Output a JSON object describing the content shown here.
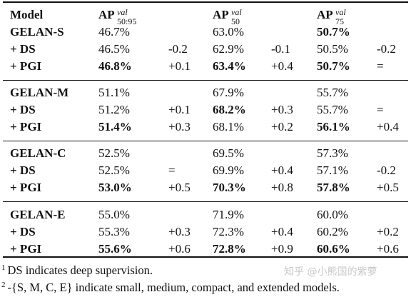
{
  "header": {
    "model": "Model",
    "ap1": {
      "main": "AP",
      "sup": "val",
      "sub": "50:95"
    },
    "ap2": {
      "main": "AP",
      "sup": "val",
      "sub": "50"
    },
    "ap3": {
      "main": "AP",
      "sup": "val",
      "sub": "75"
    }
  },
  "groups": [
    {
      "rows": [
        {
          "model": "GELAN-S",
          "v1": "46.7%",
          "d1": "",
          "v2": "63.0%",
          "d2": "",
          "v3": "50.7%",
          "d3": "",
          "b": [
            false,
            false,
            true
          ]
        },
        {
          "model": "+ DS",
          "v1": "46.5%",
          "d1": "-0.2",
          "v2": "62.9%",
          "d2": "-0.1",
          "v3": "50.5%",
          "d3": "-0.2",
          "b": [
            false,
            false,
            false
          ]
        },
        {
          "model": "+ PGI",
          "v1": "46.8%",
          "d1": "+0.1",
          "v2": "63.4%",
          "d2": "+0.4",
          "v3": "50.7%",
          "d3": "=",
          "b": [
            true,
            true,
            true
          ]
        }
      ]
    },
    {
      "rows": [
        {
          "model": "GELAN-M",
          "v1": "51.1%",
          "d1": "",
          "v2": "67.9%",
          "d2": "",
          "v3": "55.7%",
          "d3": "",
          "b": [
            false,
            false,
            false
          ]
        },
        {
          "model": "+ DS",
          "v1": "51.2%",
          "d1": "+0.1",
          "v2": "68.2%",
          "d2": "+0.3",
          "v3": "55.7%",
          "d3": "=",
          "b": [
            false,
            true,
            false
          ]
        },
        {
          "model": "+ PGI",
          "v1": "51.4%",
          "d1": "+0.3",
          "v2": "68.1%",
          "d2": "+0.2",
          "v3": "56.1%",
          "d3": "+0.4",
          "b": [
            true,
            false,
            true
          ]
        }
      ]
    },
    {
      "rows": [
        {
          "model": "GELAN-C",
          "v1": "52.5%",
          "d1": "",
          "v2": "69.5%",
          "d2": "",
          "v3": "57.3%",
          "d3": "",
          "b": [
            false,
            false,
            false
          ]
        },
        {
          "model": "+ DS",
          "v1": "52.5%",
          "d1": "=",
          "v2": "69.9%",
          "d2": "+0.4",
          "v3": "57.1%",
          "d3": "-0.2",
          "b": [
            false,
            false,
            false
          ]
        },
        {
          "model": "+ PGI",
          "v1": "53.0%",
          "d1": "+0.5",
          "v2": "70.3%",
          "d2": "+0.8",
          "v3": "57.8%",
          "d3": "+0.5",
          "b": [
            true,
            true,
            true
          ]
        }
      ]
    },
    {
      "rows": [
        {
          "model": "GELAN-E",
          "v1": "55.0%",
          "d1": "",
          "v2": "71.9%",
          "d2": "",
          "v3": "60.0%",
          "d3": "",
          "b": [
            false,
            false,
            false
          ]
        },
        {
          "model": "+ DS",
          "v1": "55.3%",
          "d1": "+0.3",
          "v2": "72.3%",
          "d2": "+0.4",
          "v3": "60.2%",
          "d3": "+0.2",
          "b": [
            false,
            false,
            false
          ]
        },
        {
          "model": "+ PGI",
          "v1": "55.6%",
          "d1": "+0.6",
          "v2": "72.8%",
          "d2": "+0.9",
          "v3": "60.6%",
          "d3": "+0.6",
          "b": [
            true,
            true,
            true
          ]
        }
      ]
    }
  ],
  "footnotes": [
    {
      "mark": "1",
      "text": "DS indicates deep supervision."
    },
    {
      "mark": "2",
      "text": "-{S, M, C, E} indicate small, medium, compact, and extended models."
    }
  ],
  "watermark": "知乎 @小熊国的紫萝"
}
